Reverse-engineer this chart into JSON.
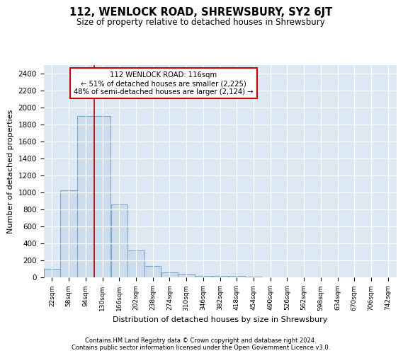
{
  "title": "112, WENLOCK ROAD, SHREWSBURY, SY2 6JT",
  "subtitle": "Size of property relative to detached houses in Shrewsbury",
  "xlabel": "Distribution of detached houses by size in Shrewsbury",
  "ylabel": "Number of detached properties",
  "bin_labels": [
    "22sqm",
    "58sqm",
    "94sqm",
    "130sqm",
    "166sqm",
    "202sqm",
    "238sqm",
    "274sqm",
    "310sqm",
    "346sqm",
    "382sqm",
    "418sqm",
    "454sqm",
    "490sqm",
    "526sqm",
    "562sqm",
    "598sqm",
    "634sqm",
    "670sqm",
    "706sqm",
    "742sqm"
  ],
  "bin_left_edges": [
    4,
    40,
    76,
    112,
    148,
    184,
    220,
    256,
    292,
    328,
    364,
    400,
    436,
    472,
    508,
    544,
    580,
    616,
    652,
    688,
    724
  ],
  "bin_width": 36,
  "bar_heights": [
    100,
    1025,
    1900,
    1900,
    860,
    320,
    130,
    55,
    40,
    20,
    15,
    20,
    5,
    3,
    3,
    0,
    0,
    0,
    0,
    0,
    0
  ],
  "bar_color": "#ccdcec",
  "bar_edge_color": "#7aaac8",
  "red_line_x": 112,
  "annotation_title": "112 WENLOCK ROAD: 116sqm",
  "annotation_line1": "← 51% of detached houses are smaller (2,225)",
  "annotation_line2": "48% of semi-detached houses are larger (2,124) →",
  "annotation_box_facecolor": "#ffffff",
  "annotation_box_edgecolor": "#cc0000",
  "ylim": [
    0,
    2500
  ],
  "yticks": [
    0,
    200,
    400,
    600,
    800,
    1000,
    1200,
    1400,
    1600,
    1800,
    2000,
    2200,
    2400
  ],
  "background_color": "#dce8f4",
  "grid_color": "#ffffff",
  "footer1": "Contains HM Land Registry data © Crown copyright and database right 2024.",
  "footer2": "Contains public sector information licensed under the Open Government Licence v3.0."
}
